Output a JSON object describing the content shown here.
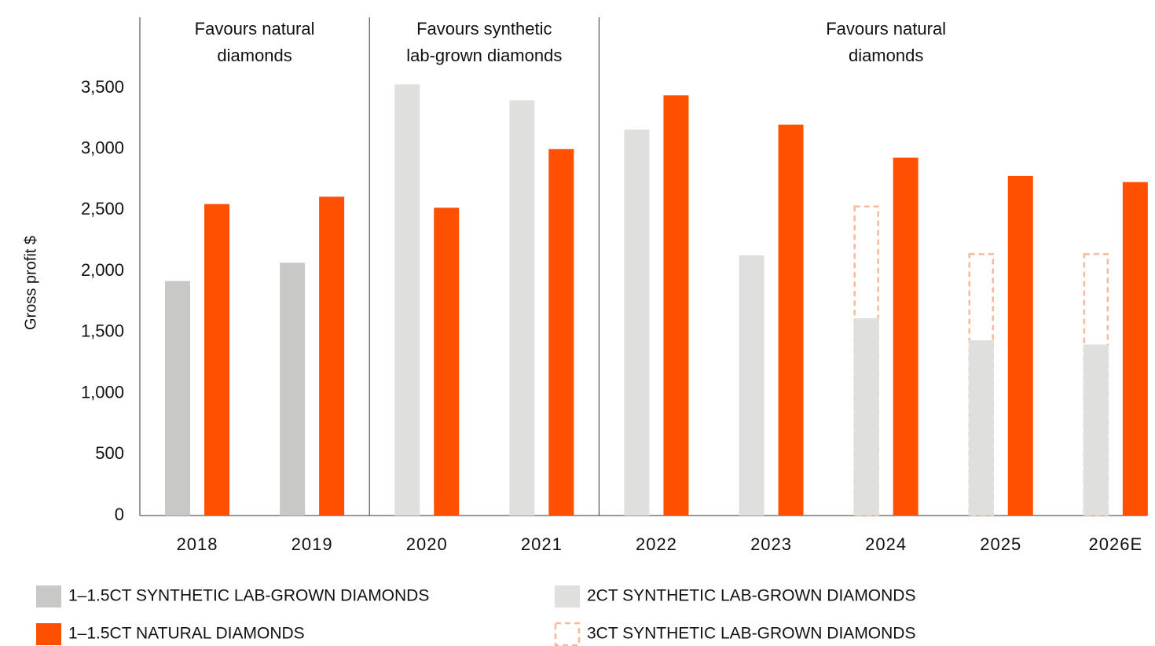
{
  "chart_data": {
    "type": "bar",
    "y_label": "Gross profit $",
    "annotations": [
      [
        "Favours natural",
        "diamonds"
      ],
      [
        "Favours synthetic",
        "lab-grown diamonds"
      ],
      [
        "Favours natural",
        "diamonds"
      ]
    ],
    "categories": [
      "2018",
      "2019",
      "2020",
      "2021",
      "2022",
      "2023",
      "2024",
      "2025",
      "2026E"
    ],
    "series": [
      {
        "name": "1–1.5CT SYNTHETIC LAB-GROWN DIAMONDS",
        "color": "#c8c9c6",
        "values": [
          1920,
          2070,
          null,
          null,
          null,
          null,
          null,
          null,
          null
        ]
      },
      {
        "name": "2CT SYNTHETIC LAB-GROWN DIAMONDS",
        "color": "#dfe0de",
        "values": [
          null,
          null,
          3530,
          3400,
          3160,
          2130,
          1615,
          1435,
          1400
        ]
      },
      {
        "name": "1–1.5CT NATURAL DIAMONDS",
        "color": "#ff4f00",
        "values": [
          2550,
          2610,
          2520,
          3000,
          3440,
          3200,
          2930,
          2780,
          2730
        ]
      },
      {
        "name": "3CT SYNTHETIC LAB-GROWN DIAMONDS",
        "color": "#f9b89a",
        "dashed": true,
        "values": [
          null,
          null,
          null,
          null,
          null,
          null,
          2530,
          2140,
          2140
        ]
      }
    ],
    "ylim": [
      0,
      3500
    ],
    "yticks": [
      0,
      500,
      {
        "value": 1000,
        "label": "1,000"
      },
      {
        "value": 1500,
        "label": "1,500"
      },
      {
        "value": 2000,
        "label": "2,000"
      },
      {
        "value": 2500,
        "label": "2,500"
      },
      {
        "value": 3000,
        "label": "3,000"
      },
      {
        "value": 3500,
        "label": "3,500"
      }
    ]
  }
}
